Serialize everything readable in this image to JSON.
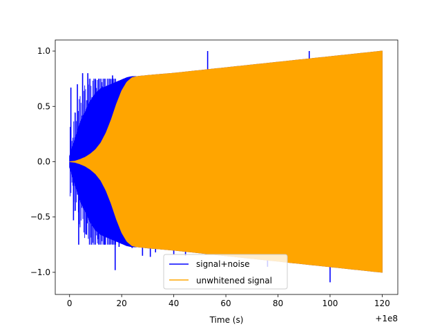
{
  "chart_data": {
    "type": "line",
    "xlabel": "Time (s)",
    "ylabel": "",
    "x_offset_label": "+1e8",
    "xlim": [
      -5.5,
      126
    ],
    "ylim": [
      -1.2,
      1.1
    ],
    "x_ticks": [
      0,
      20,
      40,
      60,
      80,
      100,
      120
    ],
    "x_tick_labels": [
      "0",
      "20",
      "40",
      "60",
      "80",
      "100",
      "120"
    ],
    "y_ticks": [
      -1.0,
      -0.5,
      0.0,
      0.5,
      1.0
    ],
    "y_tick_labels": [
      "−1.0",
      "−0.5",
      "0.0",
      "0.5",
      "1.0"
    ],
    "legend_position": "lower-center",
    "series": [
      {
        "name": "signal+noise",
        "color": "#0000ff",
        "x_range": [
          0,
          120
        ],
        "envelope_x": [
          0,
          2,
          4,
          6,
          8,
          10,
          12,
          14,
          16,
          18,
          20,
          22,
          24,
          26,
          30,
          40,
          60,
          80,
          100,
          120
        ],
        "envelope_upper": [
          0.05,
          0.2,
          0.35,
          0.45,
          0.55,
          0.62,
          0.66,
          0.68,
          0.7,
          0.72,
          0.74,
          0.76,
          0.77,
          0.77,
          0.78,
          0.8,
          0.85,
          0.9,
          0.95,
          1.0
        ],
        "noise_spikes": [
          {
            "x": 0.5,
            "y": 0.67
          },
          {
            "x": 1.5,
            "y": -0.53
          },
          {
            "x": 3.0,
            "y": 0.7
          },
          {
            "x": 3.5,
            "y": -0.75
          },
          {
            "x": 5.0,
            "y": 0.8
          },
          {
            "x": 6.5,
            "y": -0.66
          },
          {
            "x": 7.0,
            "y": 0.8
          },
          {
            "x": 8.5,
            "y": -0.75
          },
          {
            "x": 10.0,
            "y": 0.74
          },
          {
            "x": 11.0,
            "y": -0.7
          },
          {
            "x": 12.5,
            "y": 0.68
          },
          {
            "x": 13.5,
            "y": -0.75
          },
          {
            "x": 15.0,
            "y": 0.66
          },
          {
            "x": 16.5,
            "y": 0.78
          },
          {
            "x": 17.5,
            "y": -0.98
          },
          {
            "x": 19.0,
            "y": -0.77
          },
          {
            "x": 24.0,
            "y": -0.78
          },
          {
            "x": 28.0,
            "y": -0.85
          },
          {
            "x": 31.0,
            "y": -0.86
          },
          {
            "x": 33.0,
            "y": -0.82
          },
          {
            "x": 40.0,
            "y": -0.84
          },
          {
            "x": 44.5,
            "y": -0.85
          },
          {
            "x": 53.0,
            "y": 1.0
          },
          {
            "x": 76.0,
            "y": -0.95
          },
          {
            "x": 92.0,
            "y": 1.0
          },
          {
            "x": 100.0,
            "y": -1.09
          }
        ]
      },
      {
        "name": "unwhitened signal",
        "color": "#ffa500",
        "x_range": [
          0,
          120
        ],
        "envelope_x": [
          0,
          2,
          4,
          6,
          8,
          10,
          12,
          14,
          16,
          18,
          20,
          22,
          24,
          26,
          30,
          40,
          60,
          80,
          100,
          120
        ],
        "envelope_upper": [
          0.0,
          0.005,
          0.02,
          0.04,
          0.07,
          0.11,
          0.17,
          0.26,
          0.38,
          0.52,
          0.64,
          0.72,
          0.76,
          0.77,
          0.78,
          0.8,
          0.85,
          0.9,
          0.95,
          1.0
        ]
      }
    ]
  }
}
